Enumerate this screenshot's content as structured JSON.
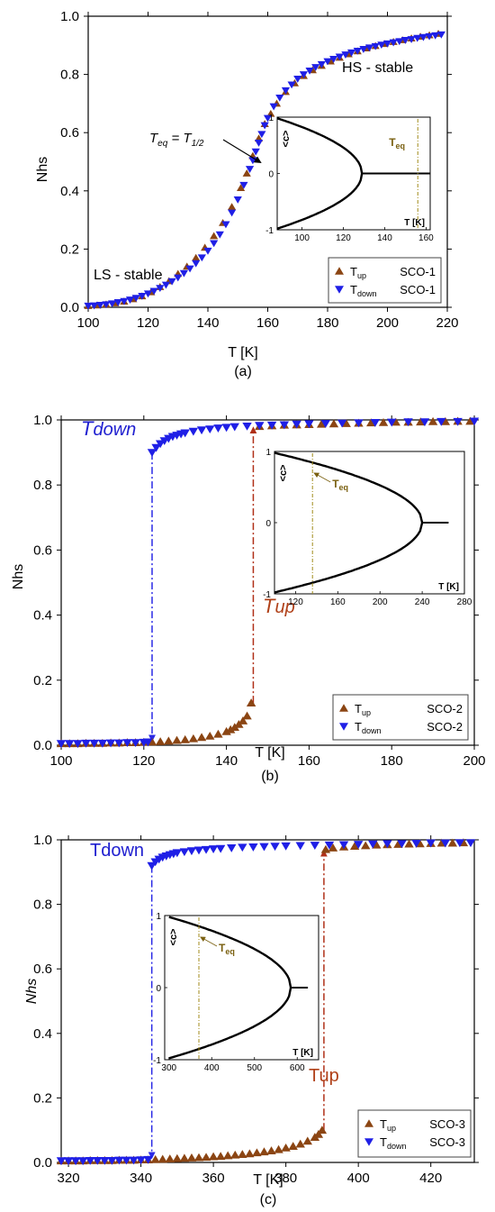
{
  "colors": {
    "up": "#8B4513",
    "down": "#1f1fe6",
    "up_line": "#b03018",
    "down_line": "#2a2ae6",
    "teq_line": "#a08a18",
    "text_up": "#b04018",
    "text_down": "#2020d0",
    "teq_text": "#7a6010",
    "axis": "#000000"
  },
  "chart_data": [
    {
      "type": "scatter",
      "panel_label": "(a)",
      "xlabel": "T [K]",
      "ylabel": "Nhs",
      "xlim": [
        100,
        220
      ],
      "ylim": [
        0,
        1.0
      ],
      "xticks": [
        "100",
        "120",
        "140",
        "160",
        "180",
        "200",
        "220"
      ],
      "yticks": [
        "0.0",
        "0.2",
        "0.4",
        "0.6",
        "0.8",
        "1.0"
      ],
      "annotations": {
        "hs": "HS - stable",
        "ls": "LS - stable",
        "teq_lhs": "T",
        "teq_lhs_sub": "eq",
        "teq_eq": " = T",
        "teq_rhs_sub": "1/2"
      },
      "legend": [
        {
          "sym": "T",
          "sub": "up",
          "name": "SCO-1"
        },
        {
          "sym": "T",
          "sub": "down",
          "name": "SCO-1"
        }
      ],
      "series": [
        {
          "key": "up",
          "x": [
            100,
            103,
            106,
            109,
            112,
            115,
            118,
            121,
            124,
            127,
            130,
            133,
            136,
            139,
            142,
            145,
            148,
            151,
            153,
            155,
            157,
            159,
            161,
            163,
            166,
            169,
            172,
            175,
            178,
            181,
            184,
            187,
            190,
            193,
            196,
            199,
            202,
            205,
            208,
            211,
            214,
            217
          ],
          "y": [
            0.005,
            0.007,
            0.01,
            0.014,
            0.02,
            0.028,
            0.038,
            0.052,
            0.07,
            0.09,
            0.115,
            0.14,
            0.17,
            0.205,
            0.245,
            0.29,
            0.345,
            0.41,
            0.46,
            0.52,
            0.58,
            0.63,
            0.665,
            0.7,
            0.74,
            0.77,
            0.795,
            0.815,
            0.83,
            0.845,
            0.858,
            0.87,
            0.88,
            0.89,
            0.898,
            0.905,
            0.912,
            0.918,
            0.924,
            0.93,
            0.935,
            0.94
          ]
        },
        {
          "key": "down",
          "x": [
            100,
            102,
            104,
            106,
            108,
            110,
            112,
            114,
            116,
            118,
            120,
            122,
            124,
            126,
            128,
            130,
            132,
            134,
            136,
            138,
            140,
            142,
            144,
            146,
            148,
            150,
            152,
            154,
            155,
            156,
            157,
            158,
            159,
            160,
            162,
            164,
            166,
            168,
            170,
            172,
            174,
            176,
            178,
            180,
            182,
            184,
            186,
            188,
            190,
            192,
            194,
            196,
            198,
            200,
            202,
            204,
            206,
            208,
            210,
            212,
            214,
            216,
            218
          ],
          "y": [
            0.005,
            0.006,
            0.008,
            0.01,
            0.013,
            0.017,
            0.021,
            0.026,
            0.032,
            0.039,
            0.047,
            0.056,
            0.066,
            0.077,
            0.089,
            0.102,
            0.117,
            0.133,
            0.151,
            0.171,
            0.194,
            0.22,
            0.25,
            0.285,
            0.325,
            0.37,
            0.42,
            0.475,
            0.505,
            0.535,
            0.565,
            0.595,
            0.625,
            0.65,
            0.69,
            0.72,
            0.745,
            0.765,
            0.785,
            0.8,
            0.813,
            0.825,
            0.835,
            0.845,
            0.853,
            0.861,
            0.868,
            0.875,
            0.881,
            0.887,
            0.892,
            0.897,
            0.902,
            0.906,
            0.91,
            0.914,
            0.918,
            0.921,
            0.925,
            0.928,
            0.931,
            0.934,
            0.937
          ]
        }
      ],
      "inset": {
        "xlabel": "T [K]",
        "ylabel": "<c>",
        "xlim": [
          88,
          162
        ],
        "ylim": [
          -1,
          1
        ],
        "xticks": [
          "100",
          "120",
          "140",
          "160"
        ],
        "yticks": [
          "-1",
          "0",
          "1"
        ],
        "tc": 129,
        "start": 88,
        "teq": 156,
        "teq_label_main": "T",
        "teq_label_sub": "eq"
      }
    },
    {
      "type": "scatter",
      "panel_label": "(b)",
      "xlabel": "T [K]",
      "ylabel": "Nhs",
      "xlim": [
        100,
        200
      ],
      "ylim": [
        0,
        1.0
      ],
      "xticks": [
        "100",
        "120",
        "140",
        "160",
        "180",
        "200"
      ],
      "yticks": [
        "0.0",
        "0.2",
        "0.4",
        "0.6",
        "0.8",
        "1.0"
      ],
      "annotations": {
        "down_main": "T",
        "down_sub": "down",
        "up_main": "T",
        "up_sub": "up"
      },
      "legend": [
        {
          "sym": "T",
          "sub": "up",
          "name": "SCO-2"
        },
        {
          "sym": "T",
          "sub": "down",
          "name": "SCO-2"
        }
      ],
      "jumps": {
        "down_x": 122,
        "down_from": 0.9,
        "down_to": 0.01,
        "up_x": 146.5,
        "up_from": 0.13,
        "up_to": 0.98
      },
      "series": [
        {
          "key": "up",
          "x": [
            100,
            102,
            104,
            106,
            108,
            110,
            112,
            114,
            116,
            118,
            120,
            122,
            124,
            126,
            128,
            130,
            132,
            134,
            136,
            138,
            140,
            141,
            142,
            143,
            144,
            145,
            146,
            148,
            151,
            154,
            157,
            160,
            163,
            166,
            169,
            172,
            175,
            178,
            181,
            184,
            187,
            190,
            193,
            196,
            199
          ],
          "y": [
            0.005,
            0.005,
            0.005,
            0.006,
            0.006,
            0.006,
            0.007,
            0.007,
            0.008,
            0.008,
            0.009,
            0.01,
            0.011,
            0.013,
            0.015,
            0.017,
            0.02,
            0.024,
            0.028,
            0.034,
            0.042,
            0.048,
            0.055,
            0.064,
            0.075,
            0.09,
            0.13,
            0.98,
            0.982,
            0.984,
            0.985,
            0.986,
            0.987,
            0.988,
            0.989,
            0.99,
            0.991,
            0.992,
            0.993,
            0.993,
            0.994,
            0.995,
            0.995,
            0.996,
            0.996
          ]
        },
        {
          "key": "down",
          "x": [
            100,
            102,
            104,
            106,
            108,
            110,
            112,
            114,
            116,
            118,
            120,
            121,
            122,
            123,
            124,
            125,
            126,
            127,
            128,
            129,
            130,
            132,
            134,
            136,
            138,
            140,
            142,
            145,
            148,
            151,
            154,
            157,
            160,
            164,
            168,
            172,
            176,
            180,
            184,
            188,
            192,
            196,
            200
          ],
          "y": [
            0.005,
            0.005,
            0.005,
            0.006,
            0.006,
            0.006,
            0.007,
            0.007,
            0.008,
            0.008,
            0.009,
            0.01,
            0.9,
            0.915,
            0.927,
            0.936,
            0.943,
            0.949,
            0.953,
            0.957,
            0.96,
            0.965,
            0.969,
            0.972,
            0.975,
            0.977,
            0.979,
            0.981,
            0.983,
            0.984,
            0.985,
            0.987,
            0.988,
            0.989,
            0.99,
            0.991,
            0.992,
            0.993,
            0.994,
            0.994,
            0.995,
            0.995,
            0.996
          ]
        }
      ],
      "inset": {
        "xlabel": "T [K]",
        "ylabel": "<c>",
        "xlim": [
          100,
          280
        ],
        "ylim": [
          -1,
          1
        ],
        "xticks": [
          "120",
          "160",
          "200",
          "240",
          "280"
        ],
        "yticks": [
          "-1",
          "0",
          "1"
        ],
        "tc": 240,
        "start": 100,
        "teq": 136,
        "end": 265,
        "teq_label_main": "T",
        "teq_label_sub": "eq"
      }
    },
    {
      "type": "scatter",
      "panel_label": "(c)",
      "xlabel": "T [K]",
      "ylabel": "Nhs",
      "xlim": [
        318,
        432
      ],
      "ylim": [
        0,
        1.0
      ],
      "xticks": [
        "320",
        "340",
        "360",
        "380",
        "400",
        "420"
      ],
      "yticks": [
        "0.0",
        "0.2",
        "0.4",
        "0.6",
        "0.8",
        "1.0"
      ],
      "annotations": {
        "down_main": "T",
        "down_sub": "down",
        "up_main": "T",
        "up_sub": "up"
      },
      "legend": [
        {
          "sym": "T",
          "sub": "up",
          "name": "SCO-3"
        },
        {
          "sym": "T",
          "sub": "down",
          "name": "SCO-3"
        }
      ],
      "jumps": {
        "down_x": 343,
        "down_from": 0.92,
        "down_to": 0.01,
        "up_x": 390.5,
        "up_from": 0.1,
        "up_to": 0.97
      },
      "series": [
        {
          "key": "up",
          "x": [
            318,
            320,
            322,
            324,
            326,
            328,
            330,
            332,
            334,
            336,
            338,
            340,
            342,
            344,
            346,
            348,
            350,
            352,
            354,
            356,
            358,
            360,
            362,
            364,
            366,
            368,
            370,
            372,
            374,
            376,
            378,
            380,
            382,
            384,
            386,
            388,
            389,
            390,
            391,
            393,
            396,
            399,
            402,
            405,
            408,
            411,
            414,
            417,
            420,
            423,
            426,
            429
          ],
          "y": [
            0.005,
            0.005,
            0.005,
            0.005,
            0.006,
            0.006,
            0.006,
            0.006,
            0.007,
            0.007,
            0.007,
            0.008,
            0.008,
            0.009,
            0.01,
            0.011,
            0.012,
            0.013,
            0.014,
            0.015,
            0.016,
            0.018,
            0.019,
            0.021,
            0.023,
            0.025,
            0.027,
            0.03,
            0.033,
            0.036,
            0.04,
            0.045,
            0.05,
            0.057,
            0.066,
            0.078,
            0.087,
            0.1,
            0.97,
            0.975,
            0.978,
            0.98,
            0.982,
            0.984,
            0.985,
            0.986,
            0.987,
            0.988,
            0.989,
            0.99,
            0.99,
            0.991
          ]
        },
        {
          "key": "down",
          "x": [
            318,
            320,
            322,
            324,
            326,
            328,
            330,
            332,
            334,
            336,
            338,
            340,
            342,
            343,
            344,
            345,
            346,
            347,
            348,
            349,
            350,
            352,
            354,
            356,
            358,
            360,
            362,
            365,
            368,
            371,
            374,
            377,
            380,
            384,
            388,
            392,
            396,
            400,
            404,
            408,
            412,
            416,
            420,
            424,
            428,
            431
          ],
          "y": [
            0.005,
            0.005,
            0.005,
            0.005,
            0.006,
            0.006,
            0.006,
            0.006,
            0.007,
            0.007,
            0.007,
            0.008,
            0.009,
            0.92,
            0.932,
            0.94,
            0.946,
            0.95,
            0.954,
            0.957,
            0.96,
            0.963,
            0.966,
            0.968,
            0.97,
            0.972,
            0.973,
            0.975,
            0.977,
            0.978,
            0.979,
            0.98,
            0.981,
            0.982,
            0.983,
            0.984,
            0.985,
            0.986,
            0.987,
            0.988,
            0.988,
            0.989,
            0.99,
            0.99,
            0.991,
            0.991
          ]
        }
      ],
      "inset": {
        "xlabel": "T [K]",
        "ylabel": "<c>",
        "xlim": [
          290,
          650
        ],
        "ylim": [
          -1,
          1
        ],
        "xticks": [
          "300",
          "400",
          "500",
          "600"
        ],
        "yticks": [
          "-1",
          "0",
          "1"
        ],
        "tc": 585,
        "start": 300,
        "teq": 370,
        "end": 625,
        "teq_label_main": "T",
        "teq_label_sub": "eq"
      }
    }
  ]
}
